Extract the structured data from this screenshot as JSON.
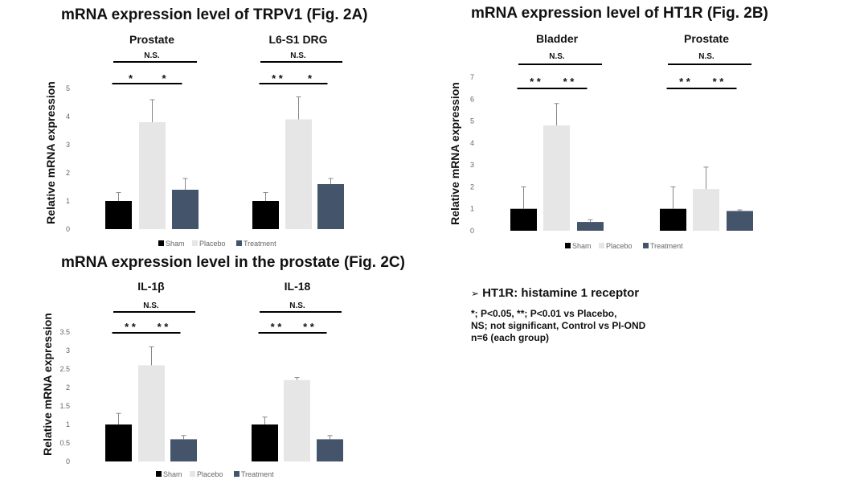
{
  "figure": {
    "title_a": "mRNA expression level  of TRPV1 (Fig. 2A)",
    "title_b": "mRNA expression level  of HT1R (Fig. 2B)",
    "title_c": "mRNA expression level in the prostate (Fig. 2C)",
    "abbreviation_marker": "➢",
    "abbreviation": "HT1R: histamine 1 receptor",
    "footnote_lines": [
      "*; P<0.05, **; P<0.01 vs Placebo,",
      "NS; not significant,  Control vs PI-OND",
      "n=6 (each group)"
    ]
  },
  "colors": {
    "sham": "#000000",
    "placebo": "#e6e6e6",
    "treatment": "#44546a"
  },
  "chart_data": [
    {
      "type": "bar",
      "figure": "2A",
      "ylabel": "Relative mRNA expression",
      "ylim": [
        0,
        5
      ],
      "yticks": [
        "0",
        "1",
        "2",
        "3",
        "4",
        "5"
      ],
      "legend": [
        "Sham",
        "Placebo",
        "Treatment"
      ],
      "legend_position": "bottom",
      "groups": [
        {
          "label": "Prostate",
          "values": [
            1.0,
            3.8,
            1.4
          ],
          "errors": [
            0.3,
            0.8,
            0.4
          ],
          "marks": {
            "ns": "N.S.",
            "left": "*",
            "right": "*"
          }
        },
        {
          "label": "L6-S1 DRG",
          "values": [
            1.0,
            3.9,
            1.6
          ],
          "errors": [
            0.3,
            0.8,
            0.2
          ],
          "marks": {
            "ns": "N.S.",
            "left": "**",
            "right": "*"
          }
        }
      ]
    },
    {
      "type": "bar",
      "figure": "2B",
      "ylabel": "Relative mRNA expression",
      "ylim": [
        0,
        7
      ],
      "yticks": [
        "0",
        "1",
        "2",
        "3",
        "4",
        "5",
        "6",
        "7"
      ],
      "legend": [
        "Sham",
        "Placebo",
        "Treatment"
      ],
      "legend_position": "bottom",
      "groups": [
        {
          "label": "Bladder",
          "values": [
            1.0,
            4.8,
            0.4
          ],
          "errors": [
            1.0,
            1.0,
            0.1
          ],
          "marks": {
            "ns": "N.S.",
            "left": "**",
            "right": "**"
          }
        },
        {
          "label": "Prostate",
          "values": [
            1.0,
            1.9,
            0.9
          ],
          "errors": [
            1.0,
            1.0,
            0.05
          ],
          "marks": {
            "ns": "N.S.",
            "left": "**",
            "right": "**"
          }
        }
      ]
    },
    {
      "type": "bar",
      "figure": "2C",
      "ylabel": "Relative mRNA expression",
      "ylim": [
        0,
        3.5
      ],
      "yticks": [
        "0",
        "0.5",
        "1",
        "1.5",
        "2",
        "2.5",
        "3",
        "3.5"
      ],
      "legend": [
        "Sham",
        "Placebo",
        "Treatment"
      ],
      "legend_position": "bottom",
      "groups": [
        {
          "label": "IL-1β",
          "values": [
            1.0,
            2.6,
            0.6
          ],
          "errors": [
            0.3,
            0.5,
            0.1
          ],
          "marks": {
            "ns": "N.S.",
            "left": "**",
            "right": "**"
          }
        },
        {
          "label": "IL-18",
          "values": [
            1.0,
            2.2,
            0.6
          ],
          "errors": [
            0.2,
            0.07,
            0.1
          ],
          "marks": {
            "ns": "N.S.",
            "left": "**",
            "right": "**"
          }
        }
      ]
    }
  ]
}
